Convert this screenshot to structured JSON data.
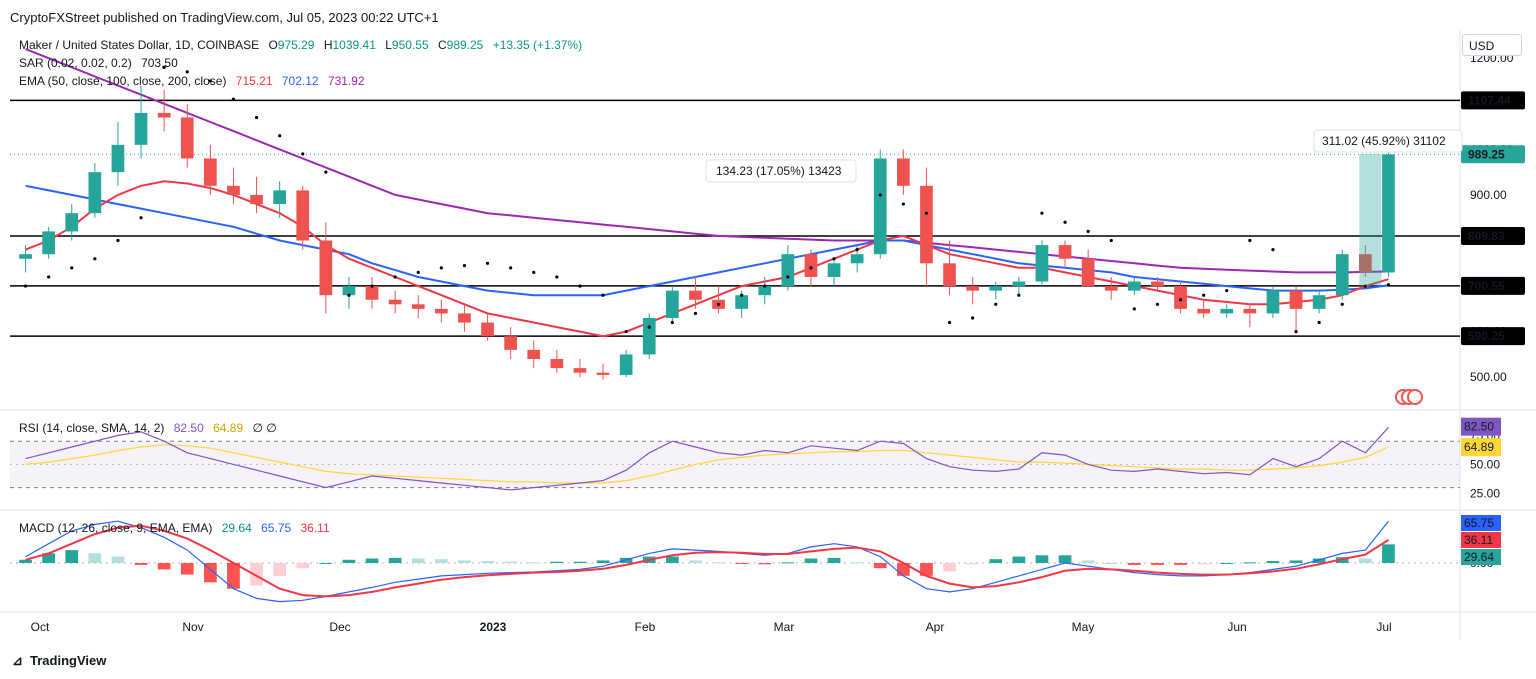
{
  "publisher": "CryptoFXStreet published on TradingView.com, Jul 05, 2023 00:22 UTC+1",
  "currency": "USD",
  "main_legend": {
    "symbol": "Maker / United States Dollar, 1D, COINBASE",
    "o_label": "O",
    "o_value": "975.29",
    "h_label": "H",
    "h_value": "1039.41",
    "l_label": "L",
    "l_value": "950.55",
    "c_label": "C",
    "c_value": "989.25",
    "change": "+13.35 (+1.37%)",
    "sar_label": "SAR (0.02, 0.02, 0.2)",
    "sar_value": "703.50",
    "ema_label": "EMA (50, close, 100, close, 200, close)",
    "ema50": "715.21",
    "ema100": "702.12",
    "ema200": "731.92"
  },
  "rsi_legend": {
    "label": "RSI (14, close, SMA, 14, 2)",
    "rsi": "82.50",
    "sma": "64.89",
    "extra": "∅ ∅"
  },
  "macd_legend": {
    "label": "MACD (12, 26, close, 9, EMA, EMA)",
    "hist": "29.64",
    "macd": "65.75",
    "signal": "36.11"
  },
  "measure1": "134.23 (17.05%) 13423",
  "measure2": "311.02 (45.92%) 31102",
  "footer": "TradingView",
  "colors": {
    "up": "#26a69a",
    "down": "#ef5350",
    "ema50": "#f23645",
    "ema100": "#2962ff",
    "ema200": "#9c27b0",
    "rsi": "#7e57c2",
    "rsi_sma": "#fdd835",
    "macd": "#2962ff",
    "signal": "#f23645"
  },
  "chart_data": [
    {
      "type": "candlestick",
      "title": "Maker / United States Dollar, 1D, COINBASE",
      "x_ticks": [
        "Oct",
        "Nov",
        "Dec",
        "2023",
        "Feb",
        "Mar",
        "Apr",
        "May",
        "Jun",
        "Jul"
      ],
      "y_ticks": [
        500,
        600,
        700,
        800,
        900,
        1000,
        1100,
        1200
      ],
      "ylim": [
        450,
        1240
      ],
      "horizontal_levels": [
        1107.44,
        809.83,
        700.55,
        590.25
      ],
      "last_price": 989.25,
      "ohlc": [
        [
          760,
          790,
          730,
          770
        ],
        [
          770,
          830,
          760,
          820
        ],
        [
          820,
          880,
          800,
          860
        ],
        [
          860,
          970,
          850,
          950
        ],
        [
          950,
          1060,
          920,
          1010
        ],
        [
          1010,
          1140,
          980,
          1080
        ],
        [
          1080,
          1130,
          1040,
          1070
        ],
        [
          1070,
          1100,
          960,
          980
        ],
        [
          980,
          1010,
          900,
          920
        ],
        [
          920,
          960,
          880,
          900
        ],
        [
          900,
          940,
          860,
          880
        ],
        [
          880,
          930,
          850,
          910
        ],
        [
          910,
          920,
          780,
          800
        ],
        [
          800,
          840,
          640,
          680
        ],
        [
          680,
          720,
          650,
          700
        ],
        [
          700,
          720,
          650,
          670
        ],
        [
          670,
          690,
          640,
          660
        ],
        [
          660,
          680,
          630,
          650
        ],
        [
          650,
          670,
          620,
          640
        ],
        [
          640,
          660,
          600,
          620
        ],
        [
          620,
          640,
          580,
          590
        ],
        [
          590,
          610,
          540,
          560
        ],
        [
          560,
          580,
          520,
          540
        ],
        [
          540,
          560,
          510,
          520
        ],
        [
          520,
          540,
          500,
          510
        ],
        [
          510,
          530,
          495,
          505
        ],
        [
          505,
          560,
          500,
          550
        ],
        [
          550,
          640,
          540,
          630
        ],
        [
          630,
          700,
          620,
          690
        ],
        [
          690,
          720,
          650,
          670
        ],
        [
          670,
          700,
          640,
          650
        ],
        [
          650,
          690,
          630,
          680
        ],
        [
          680,
          720,
          660,
          700
        ],
        [
          700,
          790,
          690,
          770
        ],
        [
          770,
          780,
          700,
          720
        ],
        [
          720,
          760,
          700,
          750
        ],
        [
          750,
          790,
          730,
          770
        ],
        [
          770,
          1000,
          760,
          980
        ],
        [
          980,
          1000,
          900,
          920
        ],
        [
          920,
          960,
          700,
          750
        ],
        [
          750,
          800,
          680,
          700
        ],
        [
          700,
          720,
          660,
          690
        ],
        [
          690,
          710,
          670,
          700
        ],
        [
          700,
          720,
          680,
          710
        ],
        [
          710,
          800,
          700,
          790
        ],
        [
          790,
          800,
          740,
          760
        ],
        [
          760,
          780,
          700,
          700
        ],
        [
          700,
          720,
          670,
          690
        ],
        [
          690,
          720,
          680,
          710
        ],
        [
          710,
          720,
          690,
          700
        ],
        [
          700,
          710,
          640,
          650
        ],
        [
          650,
          670,
          630,
          640
        ],
        [
          640,
          660,
          630,
          650
        ],
        [
          650,
          660,
          610,
          640
        ],
        [
          640,
          700,
          630,
          690
        ],
        [
          690,
          700,
          600,
          650
        ],
        [
          650,
          690,
          640,
          680
        ],
        [
          680,
          780,
          670,
          770
        ],
        [
          770,
          790,
          720,
          730
        ],
        [
          730,
          1039,
          720,
          989
        ]
      ],
      "sar": [
        700,
        720,
        740,
        760,
        800,
        850,
        1180,
        1170,
        1150,
        1110,
        1070,
        1030,
        990,
        950,
        680,
        700,
        720,
        730,
        740,
        745,
        750,
        740,
        730,
        720,
        700,
        680,
        600,
        610,
        620,
        640,
        660,
        680,
        700,
        720,
        740,
        760,
        780,
        900,
        880,
        860,
        620,
        630,
        660,
        680,
        860,
        840,
        820,
        800,
        650,
        660,
        670,
        680,
        690,
        800,
        780,
        600,
        620,
        660,
        700,
        703
      ],
      "ema50": [
        780,
        800,
        830,
        870,
        900,
        920,
        930,
        925,
        915,
        900,
        880,
        860,
        830,
        790,
        760,
        740,
        720,
        700,
        680,
        660,
        640,
        630,
        620,
        610,
        600,
        590,
        600,
        620,
        640,
        660,
        680,
        700,
        710,
        720,
        740,
        760,
        780,
        800,
        810,
        790,
        770,
        760,
        750,
        740,
        740,
        730,
        720,
        710,
        700,
        690,
        680,
        670,
        665,
        660,
        660,
        665,
        670,
        680,
        700,
        715
      ],
      "ema100": [
        920,
        910,
        900,
        890,
        880,
        870,
        860,
        850,
        840,
        830,
        815,
        800,
        790,
        780,
        770,
        750,
        735,
        720,
        710,
        700,
        690,
        685,
        680,
        680,
        680,
        680,
        690,
        700,
        710,
        720,
        730,
        740,
        750,
        760,
        770,
        780,
        790,
        800,
        800,
        790,
        780,
        770,
        760,
        750,
        745,
        740,
        735,
        730,
        720,
        715,
        710,
        705,
        700,
        695,
        690,
        690,
        690,
        692,
        695,
        702
      ],
      "ema200": [
        1220,
        1200,
        1180,
        1160,
        1140,
        1120,
        1100,
        1080,
        1060,
        1040,
        1020,
        1000,
        980,
        960,
        940,
        920,
        900,
        890,
        880,
        870,
        860,
        855,
        850,
        845,
        840,
        835,
        830,
        825,
        820,
        815,
        810,
        808,
        806,
        804,
        802,
        800,
        800,
        800,
        800,
        795,
        790,
        785,
        780,
        775,
        770,
        765,
        760,
        755,
        750,
        745,
        740,
        738,
        736,
        734,
        732,
        730,
        730,
        730,
        731,
        732
      ]
    },
    {
      "type": "line",
      "title": "RSI (14, close, SMA, 14, 2)",
      "y_ticks": [
        25,
        50,
        75
      ],
      "bands": [
        30,
        70
      ],
      "last_rsi": 82.5,
      "last_sma": 64.89,
      "rsi": [
        55,
        60,
        65,
        70,
        75,
        78,
        70,
        60,
        55,
        50,
        45,
        40,
        35,
        30,
        35,
        40,
        38,
        36,
        34,
        32,
        30,
        28,
        30,
        32,
        34,
        36,
        45,
        60,
        70,
        65,
        60,
        58,
        62,
        60,
        66,
        64,
        62,
        70,
        68,
        55,
        48,
        45,
        44,
        46,
        60,
        58,
        50,
        45,
        44,
        46,
        44,
        42,
        43,
        41,
        55,
        48,
        55,
        70,
        60,
        82
      ],
      "sma": [
        50,
        52,
        55,
        58,
        62,
        65,
        67,
        66,
        64,
        60,
        56,
        52,
        48,
        44,
        42,
        41,
        40,
        39,
        38,
        37,
        36,
        35,
        35,
        34,
        34,
        34,
        36,
        40,
        45,
        50,
        54,
        56,
        58,
        59,
        60,
        61,
        61,
        62,
        62,
        60,
        58,
        56,
        54,
        52,
        52,
        51,
        50,
        49,
        48,
        47,
        46,
        46,
        45,
        45,
        46,
        47,
        49,
        52,
        56,
        65
      ]
    },
    {
      "type": "bar+line",
      "title": "MACD (12, 26, close, 9, EMA, EMA)",
      "y_ticks": [
        0.0
      ],
      "last_hist": 29.64,
      "last_macd": 65.75,
      "last_signal": 36.11,
      "macd": [
        10,
        30,
        50,
        60,
        65,
        55,
        40,
        20,
        -10,
        -40,
        -55,
        -60,
        -58,
        -52,
        -45,
        -38,
        -30,
        -25,
        -20,
        -18,
        -16,
        -15,
        -14,
        -12,
        -10,
        -5,
        5,
        15,
        22,
        20,
        18,
        15,
        12,
        15,
        25,
        30,
        25,
        10,
        -20,
        -40,
        -45,
        -40,
        -30,
        -20,
        -10,
        0,
        -5,
        -10,
        -15,
        -18,
        -20,
        -20,
        -18,
        -15,
        -10,
        -5,
        5,
        15,
        20,
        65
      ],
      "signal": [
        5,
        15,
        30,
        45,
        55,
        58,
        50,
        38,
        20,
        0,
        -20,
        -40,
        -50,
        -52,
        -50,
        -45,
        -38,
        -32,
        -26,
        -22,
        -19,
        -17,
        -15,
        -14,
        -12,
        -9,
        -3,
        5,
        12,
        16,
        17,
        16,
        14,
        14,
        18,
        22,
        24,
        18,
        0,
        -20,
        -32,
        -38,
        -36,
        -30,
        -22,
        -12,
        -9,
        -10,
        -12,
        -15,
        -17,
        -18,
        -18,
        -16,
        -13,
        -9,
        -2,
        6,
        13,
        36
      ],
      "hist": [
        5,
        15,
        20,
        15,
        10,
        -3,
        -10,
        -18,
        -30,
        -40,
        -35,
        -20,
        -8,
        0,
        5,
        7,
        8,
        7,
        6,
        4,
        3,
        2,
        1,
        2,
        2,
        4,
        8,
        10,
        10,
        4,
        1,
        -1,
        -2,
        1,
        7,
        8,
        1,
        -8,
        -20,
        -20,
        -13,
        -2,
        6,
        10,
        12,
        12,
        4,
        0,
        -3,
        -3,
        -3,
        -2,
        0,
        1,
        3,
        4,
        7,
        9,
        7,
        29
      ]
    }
  ]
}
